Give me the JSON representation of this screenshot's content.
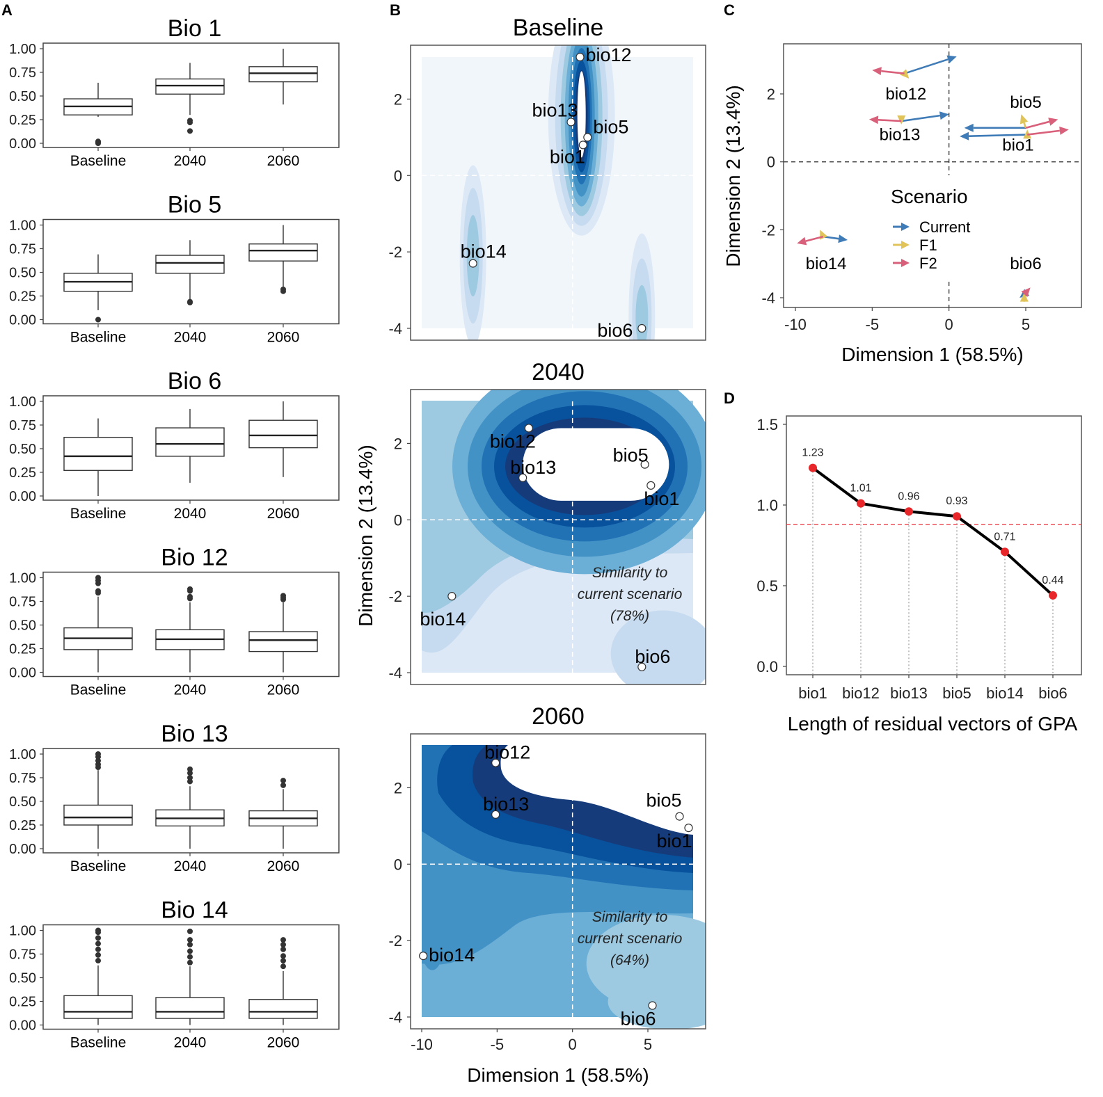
{
  "figure": {
    "panel_labels": [
      "A",
      "B",
      "C",
      "D"
    ]
  },
  "colors": {
    "current": "#3f7bb6",
    "f1": "#e0c45a",
    "f2": "#d9607a",
    "point_red": "#e8272a",
    "threshold": "#e8404a",
    "blue_levels": [
      "#dce8f5",
      "#c6dbef",
      "#9ecae1",
      "#6baed6",
      "#4292c6",
      "#2171b5",
      "#08519c",
      "#163b7a"
    ]
  },
  "chart_data": [
    {
      "id": "A",
      "type": "boxplot",
      "categories": [
        "Baseline",
        "2040",
        "2060"
      ],
      "ylim": [
        0,
        1
      ],
      "yticks": [
        "0.00",
        "0.25",
        "0.50",
        "0.75",
        "1.00"
      ],
      "panels": [
        {
          "title": "Bio 1",
          "boxes": [
            {
              "lo": 0.28,
              "q1": 0.3,
              "med": 0.39,
              "q3": 0.47,
              "hi": 0.64,
              "out": [
                0.0,
                0.01,
                0.02
              ]
            },
            {
              "lo": 0.3,
              "q1": 0.52,
              "med": 0.61,
              "q3": 0.68,
              "hi": 0.85,
              "out": [
                0.13,
                0.22,
                0.24
              ]
            },
            {
              "lo": 0.41,
              "q1": 0.65,
              "med": 0.74,
              "q3": 0.81,
              "hi": 1.0,
              "out": []
            }
          ]
        },
        {
          "title": "Bio 5",
          "boxes": [
            {
              "lo": 0.1,
              "q1": 0.3,
              "med": 0.4,
              "q3": 0.49,
              "hi": 0.69,
              "out": [
                0.0
              ]
            },
            {
              "lo": 0.21,
              "q1": 0.49,
              "med": 0.6,
              "q3": 0.68,
              "hi": 0.84,
              "out": [
                0.18,
                0.19
              ]
            },
            {
              "lo": 0.34,
              "q1": 0.62,
              "med": 0.73,
              "q3": 0.8,
              "hi": 1.0,
              "out": [
                0.3,
                0.32
              ]
            }
          ]
        },
        {
          "title": "Bio 6",
          "boxes": [
            {
              "lo": 0.0,
              "q1": 0.27,
              "med": 0.42,
              "q3": 0.62,
              "hi": 0.82,
              "out": []
            },
            {
              "lo": 0.14,
              "q1": 0.42,
              "med": 0.55,
              "q3": 0.72,
              "hi": 0.92,
              "out": []
            },
            {
              "lo": 0.2,
              "q1": 0.51,
              "med": 0.64,
              "q3": 0.8,
              "hi": 1.0,
              "out": []
            }
          ]
        },
        {
          "title": "Bio 12",
          "boxes": [
            {
              "lo": 0.0,
              "q1": 0.24,
              "med": 0.36,
              "q3": 0.47,
              "hi": 0.8,
              "out": [
                0.84,
                0.86,
                0.94,
                0.97,
                1.0
              ]
            },
            {
              "lo": 0.0,
              "q1": 0.24,
              "med": 0.35,
              "q3": 0.45,
              "hi": 0.74,
              "out": [
                0.78,
                0.8,
                0.86,
                0.88
              ]
            },
            {
              "lo": 0.0,
              "q1": 0.22,
              "med": 0.34,
              "q3": 0.43,
              "hi": 0.74,
              "out": [
                0.77,
                0.79,
                0.81
              ]
            }
          ]
        },
        {
          "title": "Bio 13",
          "boxes": [
            {
              "lo": 0.0,
              "q1": 0.25,
              "med": 0.33,
              "q3": 0.46,
              "hi": 0.83,
              "out": [
                0.86,
                0.89,
                0.93,
                0.97,
                1.0
              ]
            },
            {
              "lo": 0.0,
              "q1": 0.24,
              "med": 0.32,
              "q3": 0.41,
              "hi": 0.66,
              "out": [
                0.71,
                0.75,
                0.8,
                0.84
              ]
            },
            {
              "lo": 0.0,
              "q1": 0.24,
              "med": 0.32,
              "q3": 0.4,
              "hi": 0.63,
              "out": [
                0.67,
                0.72
              ]
            }
          ]
        },
        {
          "title": "Bio 14",
          "boxes": [
            {
              "lo": 0.0,
              "q1": 0.07,
              "med": 0.14,
              "q3": 0.31,
              "hi": 0.63,
              "out": [
                0.68,
                0.74,
                0.8,
                0.86,
                0.92,
                0.98,
                1.0
              ]
            },
            {
              "lo": 0.0,
              "q1": 0.07,
              "med": 0.14,
              "q3": 0.29,
              "hi": 0.62,
              "out": [
                0.66,
                0.72,
                0.78,
                0.85,
                0.9,
                0.99
              ]
            },
            {
              "lo": 0.0,
              "q1": 0.07,
              "med": 0.14,
              "q3": 0.27,
              "hi": 0.57,
              "out": [
                0.62,
                0.68,
                0.73,
                0.8,
                0.85,
                0.9
              ]
            }
          ]
        }
      ]
    },
    {
      "id": "B",
      "type": "contour-scatter",
      "xlim": [
        -10,
        8
      ],
      "ylim": [
        -4,
        3.1
      ],
      "xticks": [
        "-10",
        "-5",
        "0",
        "5"
      ],
      "yticks": [
        "-4",
        "-2",
        "0",
        "2"
      ],
      "xlabel": "Dimension 1 (58.5%)",
      "ylabel": "Dimension 2 (13.4%)",
      "panels": [
        {
          "title": "Baseline",
          "note": [],
          "points": [
            {
              "label": "bio12",
              "x": 0.5,
              "y": 3.1
            },
            {
              "label": "bio13",
              "x": -0.1,
              "y": 1.4
            },
            {
              "label": "bio5",
              "x": 1.0,
              "y": 1.0
            },
            {
              "label": "bio1",
              "x": 0.7,
              "y": 0.8
            },
            {
              "label": "bio14",
              "x": -6.6,
              "y": -2.3
            },
            {
              "label": "bio6",
              "x": 4.6,
              "y": -4.0
            }
          ]
        },
        {
          "title": "2040",
          "note": [
            "Similarity to",
            "current scenario",
            "(78%)"
          ],
          "points": [
            {
              "label": "bio12",
              "x": -2.9,
              "y": 2.4
            },
            {
              "label": "bio13",
              "x": -3.3,
              "y": 1.1
            },
            {
              "label": "bio5",
              "x": 4.8,
              "y": 1.45
            },
            {
              "label": "bio1",
              "x": 5.2,
              "y": 0.9
            },
            {
              "label": "bio14",
              "x": -8.0,
              "y": -2.0
            },
            {
              "label": "bio6",
              "x": 4.6,
              "y": -3.85
            }
          ]
        },
        {
          "title": "2060",
          "note": [
            "Similarity to",
            "current scenario",
            "(64%)"
          ],
          "points": [
            {
              "label": "bio12",
              "x": -5.1,
              "y": 2.65
            },
            {
              "label": "bio13",
              "x": -5.1,
              "y": 1.3
            },
            {
              "label": "bio5",
              "x": 7.1,
              "y": 1.25
            },
            {
              "label": "bio1",
              "x": 7.7,
              "y": 0.95
            },
            {
              "label": "bio14",
              "x": -9.9,
              "y": -2.4
            },
            {
              "label": "bio6",
              "x": 5.3,
              "y": -3.7
            }
          ]
        }
      ]
    },
    {
      "id": "C",
      "type": "vector-plot",
      "xlim": [
        -10.5,
        8.2
      ],
      "ylim": [
        -4.4,
        3.4
      ],
      "xticks": [
        "-10",
        "-5",
        "0",
        "5"
      ],
      "yticks": [
        "-4",
        "-2",
        "0",
        "2"
      ],
      "xlabel": "Dimension 1 (58.5%)",
      "ylabel": "Dimension 2 (13.4%)",
      "legend_title": "Scenario",
      "legend": [
        {
          "name": "Current",
          "color": "#3f7bb6"
        },
        {
          "name": "F1",
          "color": "#e0c45a"
        },
        {
          "name": "F2",
          "color": "#d9607a"
        }
      ],
      "variables": [
        {
          "label": "bio12",
          "center": [
            -2.9,
            2.6
          ],
          "current": [
            0.5,
            3.1
          ],
          "f1": [
            -2.6,
            2.45
          ],
          "f2": [
            -5.0,
            2.7
          ]
        },
        {
          "label": "bio13",
          "center": [
            -3.1,
            1.2
          ],
          "current": [
            0.0,
            1.4
          ],
          "f1": [
            -3.1,
            1.1
          ],
          "f2": [
            -5.2,
            1.25
          ]
        },
        {
          "label": "bio5",
          "center": [
            5.0,
            1.0
          ],
          "current": [
            1.0,
            1.0
          ],
          "f1": [
            4.7,
            1.4
          ],
          "f2": [
            7.1,
            1.25
          ]
        },
        {
          "label": "bio1",
          "center": [
            5.1,
            0.8
          ],
          "current": [
            0.7,
            0.75
          ],
          "f1": [
            5.1,
            0.95
          ],
          "f2": [
            7.8,
            0.95
          ]
        },
        {
          "label": "bio14",
          "center": [
            -8.2,
            -2.2
          ],
          "current": [
            -6.6,
            -2.3
          ],
          "f1": [
            -8.4,
            -2.0
          ],
          "f2": [
            -9.9,
            -2.4
          ]
        },
        {
          "label": "bio6",
          "center": [
            4.9,
            -3.9
          ],
          "current": [
            4.6,
            -4.0
          ],
          "f1": [
            4.9,
            -3.85
          ],
          "f2": [
            5.3,
            -3.7
          ]
        }
      ]
    },
    {
      "id": "D",
      "type": "line",
      "categories": [
        "bio1",
        "bio12",
        "bio13",
        "bio5",
        "bio14",
        "bio6"
      ],
      "values": [
        1.23,
        1.01,
        0.96,
        0.93,
        0.71,
        0.44
      ],
      "value_labels": [
        "1.23",
        "1.01",
        "0.96",
        "0.93",
        "0.71",
        "0.44"
      ],
      "threshold": 0.88,
      "ylim": [
        -0.05,
        1.6
      ],
      "yticks": [
        "0.0",
        "0.5",
        "1.0",
        "1.5"
      ],
      "xlabel": "Length of residual vectors of GPA"
    }
  ]
}
